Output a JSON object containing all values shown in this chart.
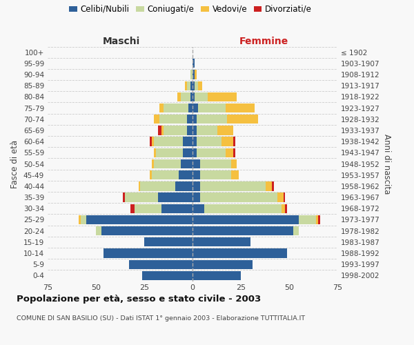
{
  "age_groups": [
    "0-4",
    "5-9",
    "10-14",
    "15-19",
    "20-24",
    "25-29",
    "30-34",
    "35-39",
    "40-44",
    "45-49",
    "50-54",
    "55-59",
    "60-64",
    "65-69",
    "70-74",
    "75-79",
    "80-84",
    "85-89",
    "90-94",
    "95-99",
    "100+"
  ],
  "birth_years": [
    "1998-2002",
    "1993-1997",
    "1988-1992",
    "1983-1987",
    "1978-1982",
    "1973-1977",
    "1968-1972",
    "1963-1967",
    "1958-1962",
    "1953-1957",
    "1948-1952",
    "1943-1947",
    "1938-1942",
    "1933-1937",
    "1928-1932",
    "1923-1927",
    "1918-1922",
    "1913-1917",
    "1908-1912",
    "1903-1907",
    "≤ 1902"
  ],
  "male": {
    "celibi": [
      26,
      33,
      46,
      25,
      47,
      55,
      16,
      18,
      9,
      7,
      6,
      5,
      5,
      3,
      3,
      2,
      1,
      1,
      0,
      0,
      0
    ],
    "coniugati": [
      0,
      0,
      0,
      0,
      3,
      3,
      14,
      17,
      18,
      14,
      14,
      14,
      15,
      12,
      14,
      13,
      5,
      2,
      1,
      0,
      0
    ],
    "vedovi": [
      0,
      0,
      0,
      0,
      0,
      1,
      0,
      0,
      1,
      1,
      1,
      1,
      1,
      1,
      3,
      2,
      2,
      1,
      0,
      0,
      0
    ],
    "divorziati": [
      0,
      0,
      0,
      0,
      0,
      0,
      2,
      1,
      0,
      0,
      0,
      0,
      1,
      2,
      0,
      0,
      0,
      0,
      0,
      0,
      0
    ]
  },
  "female": {
    "nubili": [
      25,
      31,
      49,
      30,
      52,
      55,
      6,
      4,
      4,
      4,
      4,
      2,
      2,
      2,
      2,
      3,
      1,
      1,
      1,
      1,
      0
    ],
    "coniugate": [
      0,
      0,
      0,
      0,
      3,
      9,
      40,
      40,
      34,
      16,
      16,
      15,
      13,
      11,
      16,
      14,
      7,
      2,
      0,
      0,
      0
    ],
    "vedove": [
      0,
      0,
      0,
      0,
      0,
      1,
      2,
      3,
      3,
      4,
      3,
      4,
      6,
      8,
      16,
      15,
      15,
      2,
      1,
      0,
      0
    ],
    "divorziate": [
      0,
      0,
      0,
      0,
      0,
      1,
      1,
      1,
      1,
      0,
      0,
      1,
      1,
      0,
      0,
      0,
      0,
      0,
      0,
      0,
      0
    ]
  },
  "colors": {
    "celibi": "#2e6099",
    "coniugati": "#c8d9a0",
    "vedovi": "#f5c040",
    "divorziati": "#cc2020"
  },
  "xlim": 75,
  "title": "Popolazione per età, sesso e stato civile - 2003",
  "subtitle": "COMUNE DI SAN BASILIO (SU) - Dati ISTAT 1° gennaio 2003 - Elaborazione TUTTITALIA.IT",
  "ylabel_left": "Fasce di età",
  "ylabel_right": "Anni di nascita",
  "xlabel_left": "Maschi",
  "xlabel_right": "Femmine",
  "bg_color": "#f8f8f8",
  "grid_color": "#cccccc"
}
